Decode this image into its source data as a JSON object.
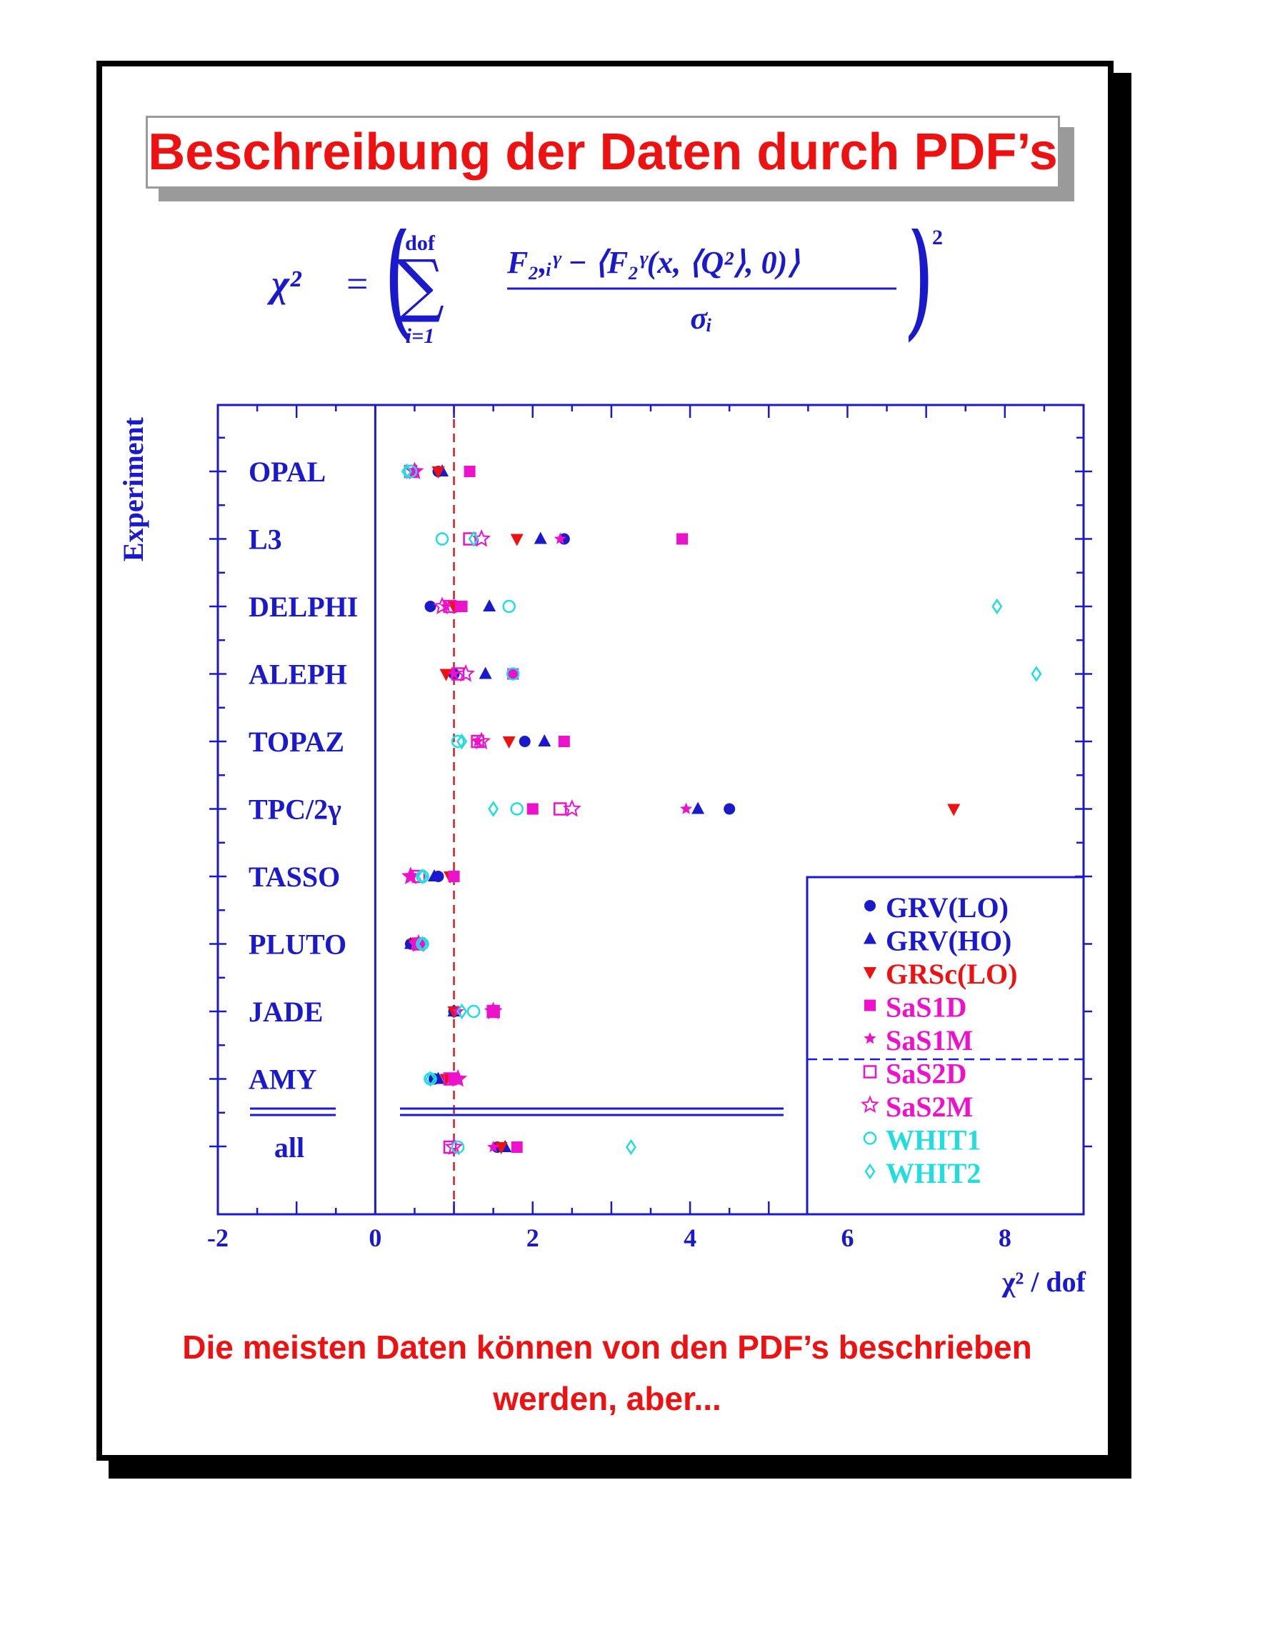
{
  "slide": {
    "title": "Beschreibung der Daten durch PDF’s",
    "formula": {
      "lhs": "χ²",
      "eq": "=",
      "sum_top": "dof",
      "sum_bottom": "i=1",
      "numerator": "F₂,ᵢᵞ − ⟨F₂ᵞ(x, ⟨Q²⟩, 0)⟩",
      "denominator": "σᵢ",
      "power": "2"
    },
    "caption_line1": "Die meisten Daten können von den PDF’s beschrieben",
    "caption_line2": "werden, aber..."
  },
  "chart_data": {
    "type": "scatter",
    "ylabel": "Experiment",
    "xlabel": "χ² / dof",
    "xlim": [
      -2,
      9
    ],
    "x_ticks": [
      "-2",
      "0",
      "2",
      "4",
      "6",
      "8"
    ],
    "reference_line_x": 1,
    "categories": [
      "OPAL",
      "L3",
      "DELPHI",
      "ALEPH",
      "TOPAZ",
      "TPC/2γ",
      "TASSO",
      "PLUTO",
      "JADE",
      "AMY",
      "all"
    ],
    "legend_position": "bottom-right",
    "series": [
      {
        "name": "GRV(LO)",
        "color": "#1a1acc",
        "marker": "circle-filled",
        "values": [
          0.8,
          2.4,
          0.7,
          1.0,
          1.9,
          4.5,
          0.8,
          0.45,
          1.0,
          0.75,
          1.55
        ]
      },
      {
        "name": "GRV(HO)",
        "color": "#1a1acc",
        "marker": "triangle-up-filled",
        "values": [
          0.85,
          2.1,
          1.45,
          1.4,
          2.15,
          4.1,
          0.75,
          0.45,
          1.0,
          0.8,
          1.65
        ]
      },
      {
        "name": "GRSc(LO)",
        "color": "#ee1111",
        "marker": "triangle-down-filled",
        "values": [
          0.8,
          1.8,
          1.0,
          0.9,
          1.7,
          7.35,
          0.95,
          0.5,
          1.0,
          0.9,
          1.6
        ]
      },
      {
        "name": "SaS1D",
        "color": "#ee11cc",
        "marker": "square-filled",
        "values": [
          1.2,
          3.9,
          1.1,
          1.75,
          2.4,
          2.0,
          1.0,
          0.55,
          1.5,
          1.0,
          1.8
        ]
      },
      {
        "name": "SaS1M",
        "color": "#ee11cc",
        "marker": "star-filled",
        "values": [
          0.5,
          2.35,
          0.9,
          1.0,
          1.3,
          3.95,
          0.45,
          0.5,
          1.05,
          1.05,
          1.5
        ]
      },
      {
        "name": "SaS2D",
        "color": "#ee11cc",
        "marker": "square-open",
        "values": [
          0.45,
          1.2,
          0.95,
          1.05,
          1.3,
          2.35,
          0.55,
          0.55,
          1.5,
          0.95,
          0.95
        ]
      },
      {
        "name": "SaS2M",
        "color": "#ee11cc",
        "marker": "star-open",
        "values": [
          0.5,
          1.35,
          0.85,
          1.15,
          1.35,
          2.5,
          0.45,
          0.55,
          1.5,
          1.05,
          1.0
        ]
      },
      {
        "name": "WHIT1",
        "color": "#22dddd",
        "marker": "circle-open",
        "values": [
          0.45,
          0.85,
          1.7,
          1.75,
          1.05,
          1.8,
          0.6,
          0.6,
          1.25,
          0.7,
          1.05
        ]
      },
      {
        "name": "WHIT2",
        "color": "#22dddd",
        "marker": "diamond-open",
        "values": [
          0.4,
          1.25,
          7.9,
          8.4,
          1.1,
          1.5,
          0.6,
          0.6,
          1.1,
          0.7,
          3.25
        ]
      }
    ]
  }
}
